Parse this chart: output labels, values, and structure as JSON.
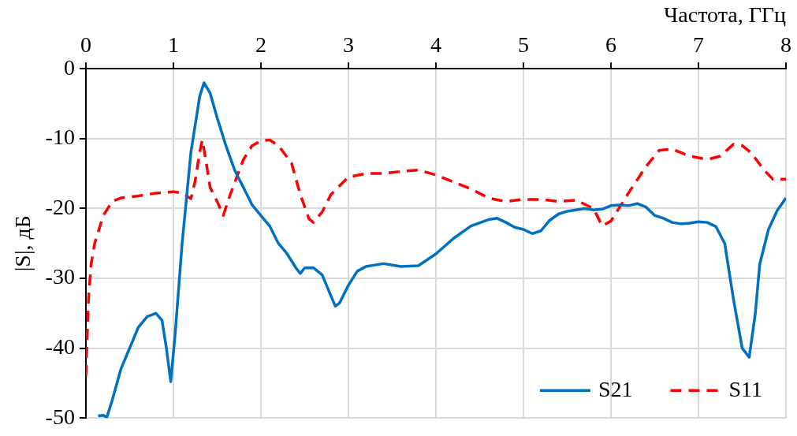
{
  "chart_data": {
    "type": "line",
    "xlabel": "Частота, ГГц",
    "ylabel": "|S|, дБ",
    "xlim": [
      0,
      8
    ],
    "xticks": [
      0,
      1,
      2,
      3,
      4,
      5,
      6,
      7,
      8
    ],
    "ylim": [
      -50,
      0
    ],
    "yticks": [
      -50,
      -40,
      -30,
      -20,
      -10,
      0
    ],
    "grid": true,
    "legend": "bottom right",
    "marker": "none",
    "series": [
      {
        "name": "S21",
        "color": "#0070c0",
        "line_style": "solid",
        "x": [
          0.14,
          0.2,
          0.24,
          0.3,
          0.4,
          0.5,
          0.6,
          0.7,
          0.8,
          0.87,
          0.92,
          0.97,
          1.02,
          1.1,
          1.2,
          1.3,
          1.35,
          1.42,
          1.5,
          1.6,
          1.7,
          1.8,
          1.9,
          2.0,
          2.1,
          2.2,
          2.3,
          2.4,
          2.45,
          2.5,
          2.6,
          2.7,
          2.8,
          2.85,
          2.9,
          3.0,
          3.1,
          3.2,
          3.4,
          3.6,
          3.8,
          4.0,
          4.2,
          4.4,
          4.6,
          4.7,
          4.8,
          4.9,
          5.0,
          5.1,
          5.2,
          5.3,
          5.4,
          5.5,
          5.6,
          5.7,
          5.8,
          5.9,
          6.0,
          6.1,
          6.2,
          6.3,
          6.4,
          6.5,
          6.6,
          6.7,
          6.8,
          6.9,
          7.0,
          7.1,
          7.2,
          7.3,
          7.4,
          7.5,
          7.58,
          7.65,
          7.7,
          7.8,
          7.9,
          8.0
        ],
        "values": [
          -49.7,
          -49.6,
          -49.9,
          -47.5,
          -43,
          -40,
          -37,
          -35.5,
          -35,
          -36,
          -40,
          -44.8,
          -38,
          -25,
          -12,
          -4,
          -2,
          -3.5,
          -7,
          -11,
          -14.5,
          -17,
          -19.5,
          -21,
          -22.5,
          -25,
          -26.5,
          -28.5,
          -29.3,
          -28.5,
          -28.5,
          -29.5,
          -32.5,
          -34,
          -33.5,
          -31,
          -29,
          -28.3,
          -27.9,
          -28.3,
          -28.2,
          -26.5,
          -24.3,
          -22.5,
          -21.6,
          -21.4,
          -22,
          -22.7,
          -23,
          -23.6,
          -23.2,
          -21.7,
          -20.8,
          -20.4,
          -20.2,
          -20,
          -20.2,
          -20.1,
          -19.6,
          -19.5,
          -19.6,
          -19.3,
          -19.8,
          -21,
          -21.4,
          -22,
          -22.2,
          -22.1,
          -21.9,
          -22,
          -22.6,
          -25,
          -33,
          -40,
          -41.3,
          -35,
          -28,
          -23,
          -20.3,
          -18.5
        ]
      },
      {
        "name": "S11",
        "color": "#ff0000",
        "line_style": "dashed",
        "x": [
          0,
          0.03,
          0.06,
          0.1,
          0.2,
          0.3,
          0.4,
          0.6,
          0.8,
          1.0,
          1.1,
          1.2,
          1.25,
          1.3,
          1.33,
          1.37,
          1.42,
          1.5,
          1.57,
          1.65,
          1.8,
          1.9,
          2.0,
          2.1,
          2.2,
          2.35,
          2.45,
          2.55,
          2.6,
          2.7,
          2.8,
          3.0,
          3.2,
          3.4,
          3.6,
          3.8,
          4.0,
          4.2,
          4.4,
          4.6,
          4.8,
          5.0,
          5.2,
          5.4,
          5.6,
          5.8,
          5.9,
          6.0,
          6.1,
          6.2,
          6.4,
          6.55,
          6.7,
          6.9,
          7.1,
          7.25,
          7.4,
          7.5,
          7.6,
          7.75,
          7.85,
          8.0
        ],
        "values": [
          -44,
          -33,
          -28,
          -25,
          -21,
          -19,
          -18.5,
          -18.2,
          -17.8,
          -17.6,
          -17.8,
          -18.6,
          -16,
          -12,
          -10.2,
          -13,
          -17,
          -19,
          -21,
          -18,
          -13,
          -11,
          -10.3,
          -10.2,
          -11,
          -13.5,
          -18,
          -21.5,
          -22,
          -20.5,
          -18,
          -15.5,
          -15,
          -15,
          -14.7,
          -14.5,
          -15.2,
          -16.2,
          -17.2,
          -18.5,
          -19,
          -18.7,
          -18.7,
          -19,
          -18.8,
          -20,
          -22.5,
          -21.8,
          -19.8,
          -17.8,
          -14,
          -11.7,
          -11.5,
          -12.5,
          -13,
          -12.5,
          -10.8,
          -11,
          -12,
          -14.5,
          -15.8,
          -15.8
        ]
      }
    ]
  }
}
